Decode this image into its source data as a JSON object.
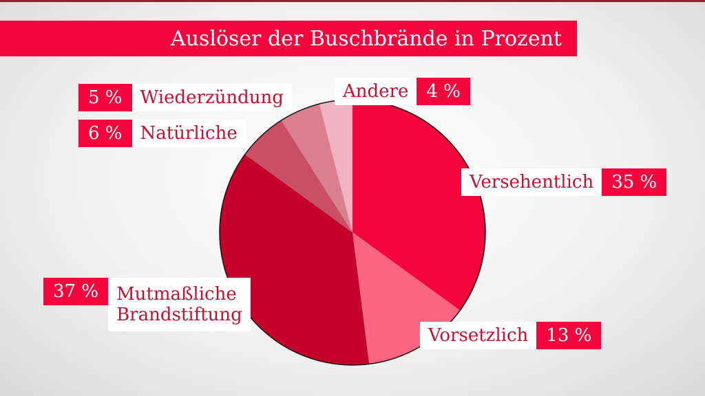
{
  "chart_data": {
    "type": "pie",
    "title": "Auslöser der Buschbrände in Prozent",
    "slices": [
      {
        "label": "Versehentlich",
        "value": 35,
        "display": "35 %",
        "color": "#f5053c"
      },
      {
        "label": "Vorsetzlich",
        "value": 13,
        "display": "13 %",
        "color": "#fa6580"
      },
      {
        "label": "Mutmaßliche Brandstiftung",
        "label_lines": [
          "Mutmaßliche",
          "Brandstiftung"
        ],
        "value": 37,
        "display": "37 %",
        "color": "#c4022a"
      },
      {
        "label": "Natürliche",
        "value": 6,
        "display": "6 %",
        "color": "#c94f66"
      },
      {
        "label": "Wiederzündung",
        "value": 5,
        "display": "5 %",
        "color": "#d97f8f"
      },
      {
        "label": "Andere",
        "value": 4,
        "display": "4 %",
        "color": "#f0b3c0"
      }
    ]
  }
}
